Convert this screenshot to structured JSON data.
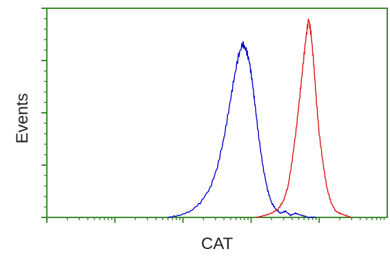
{
  "chart_data": {
    "type": "line",
    "xlabel": "CAT",
    "ylabel": "Events",
    "x_scale": "log",
    "xlim": [
      1,
      100000
    ],
    "ylim": [
      0,
      1.0
    ],
    "grid": false,
    "legend": "none",
    "axis_color": "#3a8a2e",
    "series": [
      {
        "color": "#0000cc",
        "x": [
          60,
          90,
          130,
          180,
          250,
          320,
          400,
          480,
          560,
          650,
          750,
          850,
          950,
          1050,
          1150,
          1300,
          1500,
          1750,
          2000,
          2300,
          2700,
          3200,
          3800,
          4500,
          5500,
          7000,
          9000
        ],
        "y": [
          0.0,
          0.01,
          0.03,
          0.07,
          0.14,
          0.24,
          0.38,
          0.53,
          0.66,
          0.77,
          0.83,
          0.8,
          0.74,
          0.64,
          0.53,
          0.38,
          0.24,
          0.13,
          0.07,
          0.04,
          0.02,
          0.03,
          0.01,
          0.02,
          0.01,
          0.0,
          0.0
        ]
      },
      {
        "color": "#dd1111",
        "x": [
          1200,
          1600,
          2000,
          2500,
          3000,
          3500,
          4000,
          4600,
          5200,
          5800,
          6400,
          7000,
          7600,
          8300,
          9000,
          10000,
          11500,
          13000,
          15000,
          17500,
          20000,
          24000,
          30000
        ],
        "y": [
          0.0,
          0.01,
          0.02,
          0.04,
          0.08,
          0.15,
          0.27,
          0.42,
          0.58,
          0.73,
          0.86,
          0.95,
          0.88,
          0.74,
          0.58,
          0.4,
          0.25,
          0.14,
          0.07,
          0.03,
          0.02,
          0.01,
          0.0
        ]
      }
    ]
  }
}
